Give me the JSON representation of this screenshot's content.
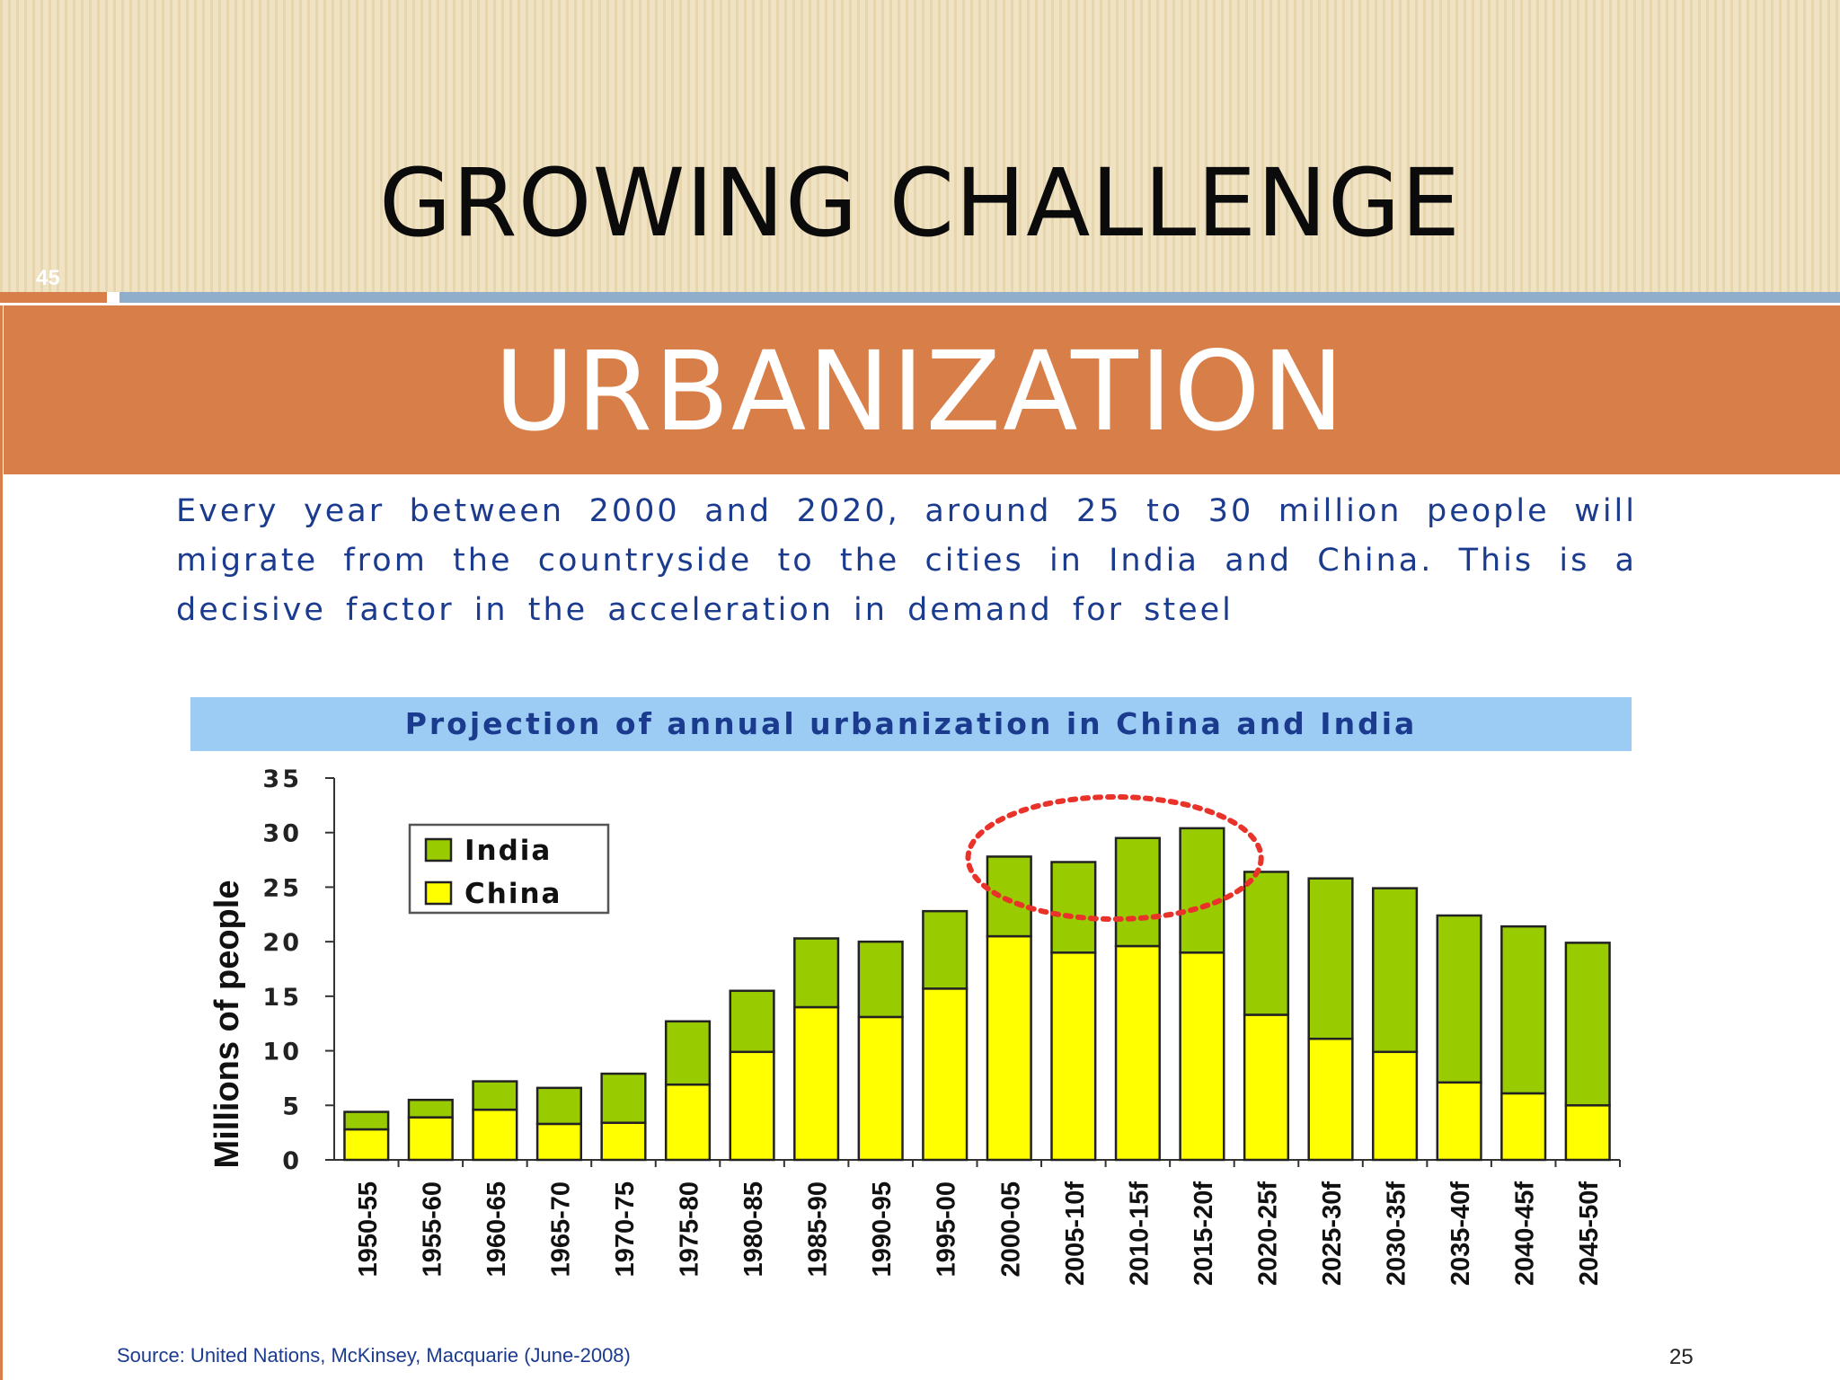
{
  "slide": {
    "title": "GROWING CHALLENGE",
    "number": "45",
    "banner": "URBANIZATION",
    "intro": "Every year between 2000 and 2020, around 25 to 30 million people will migrate from the countryside to the cities in India and China. This is a decisive factor in the acceleration in demand for steel",
    "source": "Source: United Nations, McKinsey, Macquarie (June-2008)",
    "page": "25"
  },
  "colors": {
    "header_bg": "#eadcb8",
    "banner": "#d87e48",
    "rule_blue": "#8eaecb",
    "text_blue": "#1b3b8f",
    "title_bar": "#9ccbf4",
    "india": "#99cc00",
    "china": "#ffff00",
    "highlight": "#e8322a"
  },
  "chart_data": {
    "type": "bar",
    "stacked": true,
    "title": "Projection of annual urbanization in China and India",
    "xlabel": "",
    "ylabel": "Millions of people",
    "ylim": [
      0,
      35
    ],
    "yticks": [
      0,
      5,
      10,
      15,
      20,
      25,
      30,
      35
    ],
    "grid": false,
    "legend_position": "top-left",
    "categories": [
      "1950-55",
      "1955-60",
      "1960-65",
      "1965-70",
      "1970-75",
      "1975-80",
      "1980-85",
      "1985-90",
      "1990-95",
      "1995-00",
      "2000-05",
      "2005-10f",
      "2010-15f",
      "2015-20f",
      "2020-25f",
      "2025-30f",
      "2030-35f",
      "2035-40f",
      "2040-45f",
      "2045-50f"
    ],
    "series": [
      {
        "name": "China",
        "color": "#ffff00",
        "values": [
          2.8,
          3.9,
          4.6,
          3.3,
          3.4,
          6.9,
          9.9,
          14.0,
          13.1,
          15.7,
          20.5,
          19.0,
          19.6,
          19.0,
          13.3,
          11.1,
          9.9,
          7.1,
          6.1,
          5.0
        ]
      },
      {
        "name": "India",
        "color": "#99cc00",
        "values": [
          1.6,
          1.6,
          2.6,
          3.3,
          4.5,
          5.8,
          5.6,
          6.3,
          6.9,
          7.1,
          7.3,
          8.3,
          9.9,
          11.4,
          13.1,
          14.7,
          15.0,
          15.3,
          15.3,
          14.9
        ]
      }
    ],
    "annotations": [
      {
        "type": "dotted-ellipse",
        "color": "#e8322a",
        "covers_categories": [
          "2000-05",
          "2005-10f",
          "2010-15f",
          "2015-20f"
        ]
      }
    ]
  }
}
